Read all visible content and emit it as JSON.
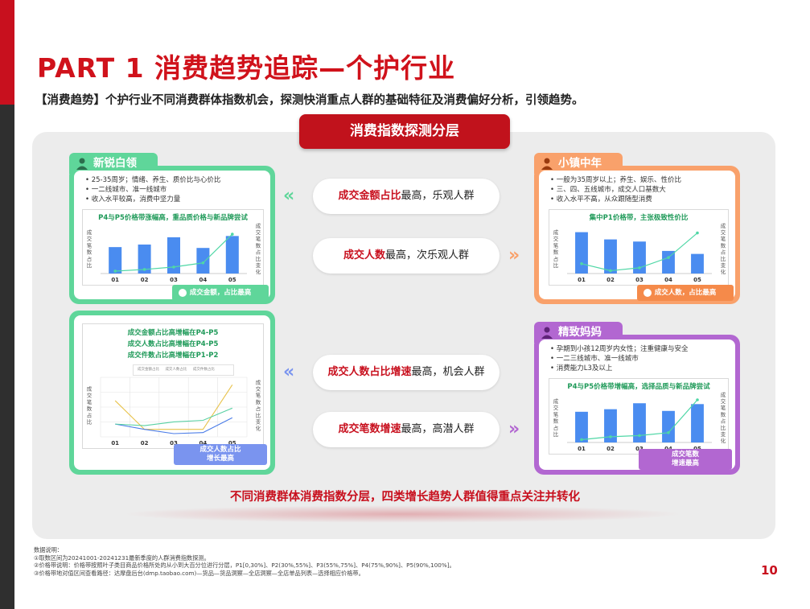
{
  "header": {
    "title": "PART 1  消费趋势追踪—个护行业",
    "subtitle": "【消费趋势】个护行业不同消费群体指数机会，探测快消重点人群的基础特征及消费偏好分析，引领趋势。"
  },
  "banner": "消费指数探测分层",
  "colors": {
    "green": "#5fd69a",
    "orange": "#f9a16b",
    "purple": "#b267d1",
    "red": "#c8101e",
    "blue_bar": "#4a8cf0"
  },
  "cards": {
    "green_top": {
      "name": "新锐白领",
      "bullets": [
        "25-35周岁；情绪、养生、质价比与心价比",
        "一二线城市、准一线城市",
        "收入水平较高，消费中坚力量"
      ],
      "chart_title": "P4与P5价格带涨幅高，重品质价格与新品牌尝试",
      "badge": "成交金额，占比最高"
    },
    "orange_top": {
      "name": "小镇中年",
      "bullets": [
        "一般为35周岁以上；养生、娱乐、性价比",
        "三、四、五线城市，成交人口基数大",
        "收入水平不高，从众跟随型消费"
      ],
      "chart_title": "集中P1价格带，主张极致性价比",
      "badge": "成交人数，占比最高"
    },
    "green_bottom": {
      "chart_lines": [
        "成交金额占比高增幅在P4-P5",
        "成交人数占比高增幅在P4-P5",
        "成交件数占比高增幅在P1-P2"
      ],
      "legend": [
        "成交金额占比",
        "成交人数占比",
        "成交件数占比"
      ],
      "badge_line1": "成交人数占比",
      "badge_line2": "增长最高"
    },
    "purple_bottom": {
      "name": "精致妈妈",
      "bullets": [
        "孕期到小孩12周岁内女性；注重健康与安全",
        "一二三线城市、准一线城市",
        "消费能力L3及以上"
      ],
      "chart_title": "P4与P5价格带增幅高，选择品质与新品牌尝试",
      "badge_line1": "成交笔数",
      "badge_line2": "增速最高"
    }
  },
  "axis": {
    "left": "成交笔数占比",
    "right": "成交笔数占比变化",
    "ticks": [
      "01",
      "02",
      "03",
      "04",
      "05"
    ]
  },
  "pills": [
    {
      "strong": "成交金额占比",
      "rest": "最高，乐观人群"
    },
    {
      "strong": "成交人数",
      "rest": "最高，次乐观人群"
    },
    {
      "strong": "成交人数占比增速",
      "rest": "最高，机会人群"
    },
    {
      "strong": "成交笔数增速",
      "rest": "最高，高潜人群"
    }
  ],
  "bottom_text": "不同消费群体消费指数分层，四类增长趋势人群值得重点关注并转化",
  "notes": [
    "数据说明：",
    "①取数区间为20241001-20241231最新季度的人群消费指数探测。",
    "②价格带说明：价格带按照叶子类目商品价格所处的从小到大百分位进行分层，P1[0,30%]、P2(30%,55%]、P3(55%,75%]、P4(75%,90%]、P5(90%,100%]。",
    "③价格带地对值区间查看路径：达摩盘后台(dmp.taobao.com)—货品—货品洞察—全店洞察—全店单品列表—选择相应价格带。"
  ],
  "page_number": "10",
  "chart_data": [
    {
      "type": "bar",
      "id": "green_top",
      "categories": [
        "01",
        "02",
        "03",
        "04",
        "05"
      ],
      "values": [
        0.62,
        0.68,
        0.85,
        0.6,
        0.88
      ],
      "line": [
        0.02,
        0.06,
        0.12,
        0.22,
        0.92
      ]
    },
    {
      "type": "bar",
      "id": "orange_top",
      "categories": [
        "01",
        "02",
        "03",
        "04",
        "05"
      ],
      "values": [
        0.97,
        0.8,
        0.75,
        0.53,
        0.46
      ],
      "line": [
        0.2,
        0.03,
        0.1,
        0.35,
        0.95
      ]
    },
    {
      "type": "line",
      "id": "green_bottom",
      "categories": [
        "01",
        "02",
        "03",
        "04",
        "05"
      ],
      "series": [
        {
          "name": "成交金额占比",
          "values": [
            0.62,
            0.08,
            0.08,
            0.08,
            0.92
          ]
        },
        {
          "name": "成交人数占比",
          "values": [
            0.18,
            0.08,
            0.0,
            0.02,
            0.3
          ]
        },
        {
          "name": "成交件数占比",
          "values": [
            0.18,
            0.15,
            0.22,
            0.25,
            0.48
          ]
        }
      ]
    },
    {
      "type": "bar",
      "id": "purple_bottom",
      "categories": [
        "01",
        "02",
        "03",
        "04",
        "05"
      ],
      "values": [
        0.72,
        0.78,
        0.92,
        0.74,
        0.9
      ],
      "line": [
        0.03,
        0.1,
        0.13,
        0.2,
        1.0
      ]
    }
  ]
}
